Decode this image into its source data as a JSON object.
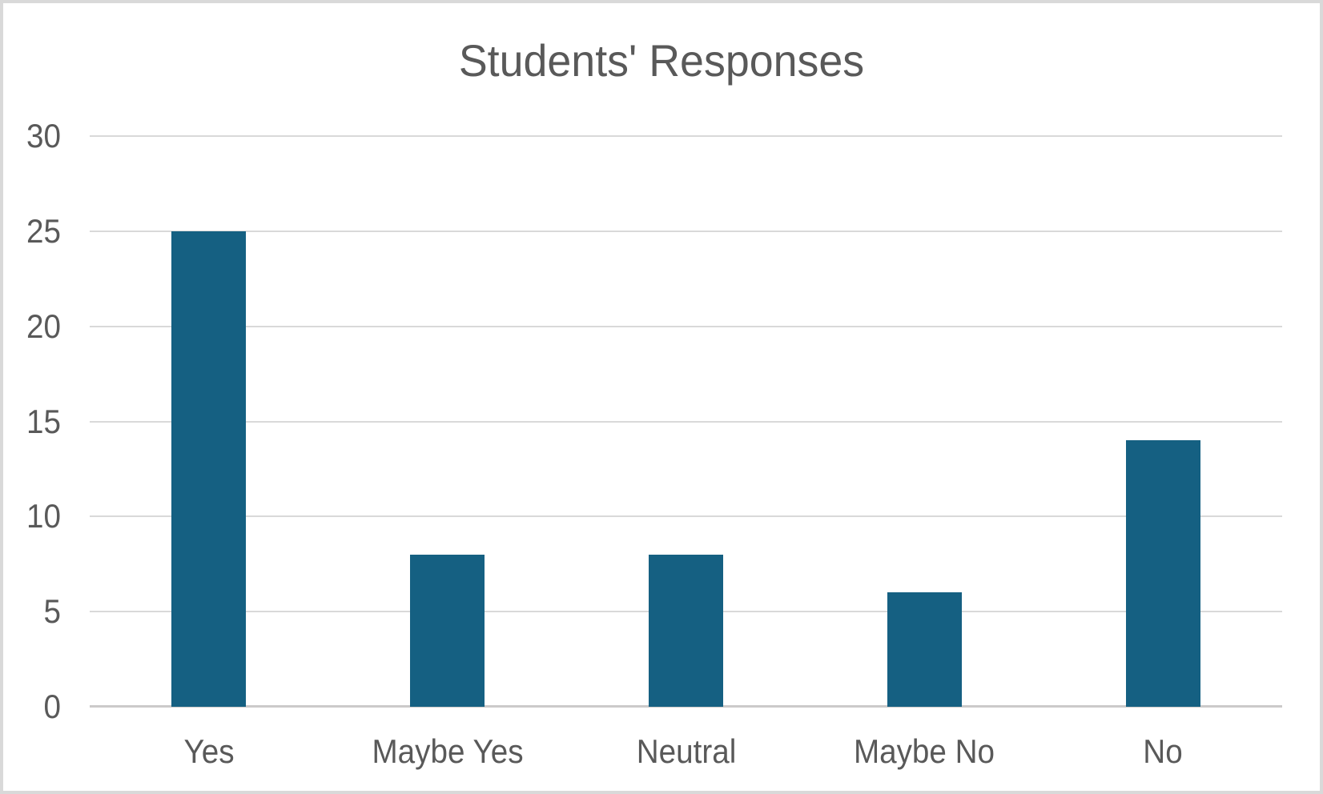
{
  "window": {
    "background_color": "#ffffff",
    "border_color": "#d9d9d9"
  },
  "chart_data": {
    "type": "bar",
    "title": "Students' Responses",
    "categories": [
      "Yes",
      "Maybe Yes",
      "Neutral",
      "Maybe No",
      "No"
    ],
    "values": [
      25,
      8,
      8,
      6,
      14
    ],
    "xlabel": "",
    "ylabel": "",
    "ylim": [
      0,
      30
    ],
    "ytick_interval": 5,
    "ytick_labels": [
      "0",
      "5",
      "10",
      "15",
      "20",
      "25",
      "30"
    ],
    "grid": true,
    "legend": false,
    "bar_color": "#156082",
    "text_color": "#595959",
    "gridline_color": "#d9d9d9",
    "axis_line_color": "#cccaca"
  }
}
